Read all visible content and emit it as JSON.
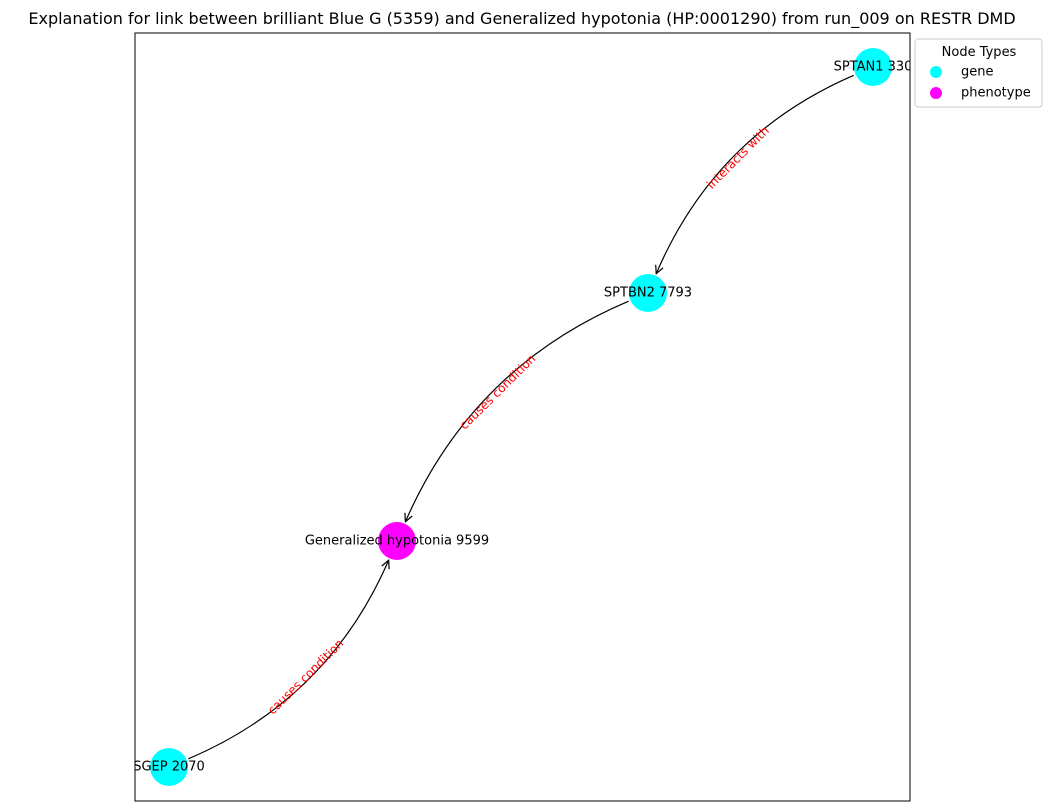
{
  "title": "Explanation for link between brilliant Blue G (5359) and Generalized hypotonia (HP:0001290) from run_009 on RESTR DMD",
  "colors": {
    "gene": "#00ffff",
    "phenotype": "#ff00ff",
    "edge": "#000000",
    "edge_label": "#ff0000"
  },
  "legend": {
    "title": "Node Types",
    "items": [
      {
        "label": "gene",
        "type": "gene"
      },
      {
        "label": "phenotype",
        "type": "phenotype"
      }
    ]
  },
  "nodes": [
    {
      "id": "sptan1",
      "label": "SPTAN1 330",
      "type": "gene"
    },
    {
      "id": "sptbn2",
      "label": "SPTBN2 7793",
      "type": "gene"
    },
    {
      "id": "hypotonia",
      "label": "Generalized hypotonia 9599",
      "type": "phenotype"
    },
    {
      "id": "sgep",
      "label": "SGEP 2070",
      "type": "gene"
    }
  ],
  "edges": [
    {
      "source": "sptan1",
      "target": "sptbn2",
      "label": "interacts with"
    },
    {
      "source": "sptbn2",
      "target": "hypotonia",
      "label": "causes condition"
    },
    {
      "source": "sgep",
      "target": "hypotonia",
      "label": "causes condition"
    }
  ]
}
